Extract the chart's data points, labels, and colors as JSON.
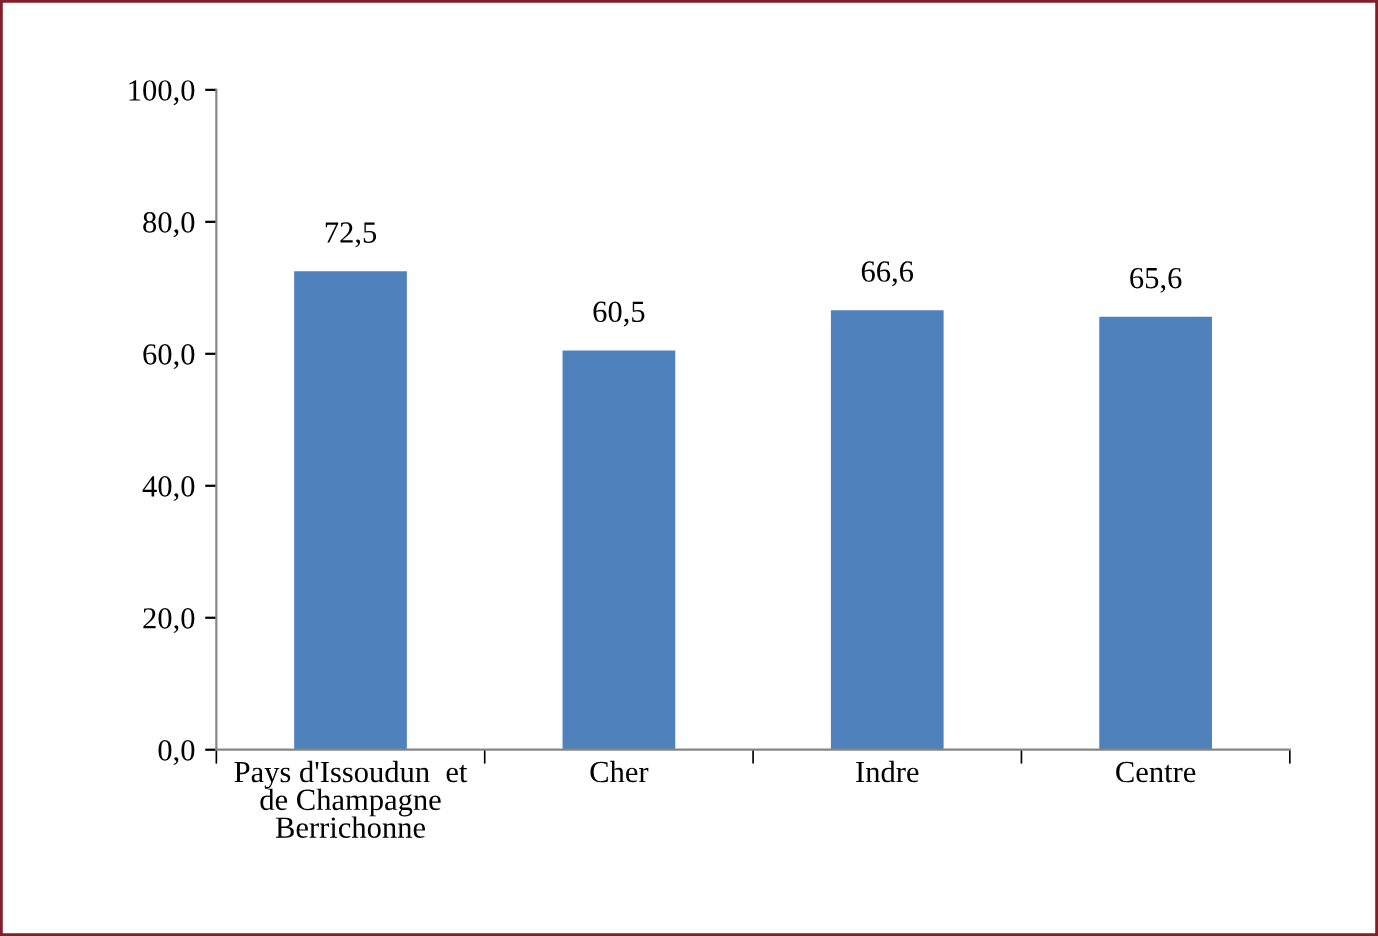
{
  "chart_data": {
    "type": "bar",
    "categories": [
      "Pays d'Issoudun  et\nde Champagne\nBerrichonne",
      "Cher",
      "Indre",
      "Centre"
    ],
    "values": [
      72.5,
      60.5,
      66.6,
      65.6
    ],
    "value_labels": [
      "72,5",
      "60,5",
      "66,6",
      "65,6"
    ],
    "color": "#4f81bd",
    "ylim": [
      0,
      100
    ],
    "yticks": [
      {
        "value": 0,
        "label": "0,0"
      },
      {
        "value": 20,
        "label": "20,0"
      },
      {
        "value": 40,
        "label": "40,0"
      },
      {
        "value": 60,
        "label": "60,0"
      },
      {
        "value": 80,
        "label": "80,0"
      },
      {
        "value": 100,
        "label": "100,0"
      }
    ],
    "grid": false,
    "legend": false
  }
}
